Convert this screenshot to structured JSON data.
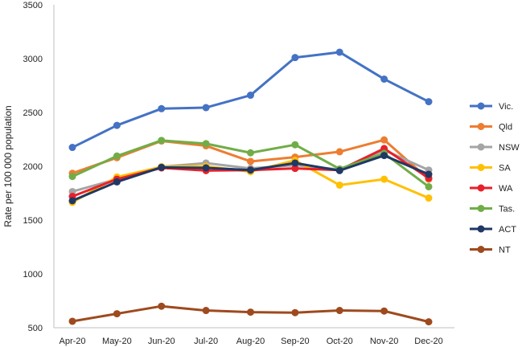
{
  "chart_data": {
    "type": "line",
    "title": "",
    "xlabel": "",
    "ylabel": "Rate per 100 000 population",
    "ylim": [
      500,
      3500
    ],
    "yticks": [
      500,
      1000,
      1500,
      2000,
      2500,
      3000,
      3500
    ],
    "grid": false,
    "legend_position": "right",
    "categories": [
      "Apr-20",
      "May-20",
      "Jun-20",
      "Jul-20",
      "Aug-20",
      "Sep-20",
      "Oct-20",
      "Nov-20",
      "Dec-20"
    ],
    "series": [
      {
        "name": "Vic.",
        "color": "#4472C4",
        "values": [
          2175,
          2380,
          2535,
          2545,
          2660,
          3010,
          3060,
          2810,
          2600
        ]
      },
      {
        "name": "Qld",
        "color": "#ED7D31",
        "values": [
          1935,
          2080,
          2235,
          2190,
          2045,
          2085,
          2135,
          2245,
          1880
        ]
      },
      {
        "name": "NSW",
        "color": "#A5A5A5",
        "values": [
          1765,
          1880,
          1995,
          2030,
          1980,
          2010,
          1970,
          2150,
          1965
        ]
      },
      {
        "name": "SA",
        "color": "#FFC000",
        "values": [
          1665,
          1900,
          1995,
          2000,
          1950,
          2055,
          1825,
          1880,
          1705
        ]
      },
      {
        "name": "WA",
        "color": "#E8202A",
        "values": [
          1720,
          1880,
          1985,
          1960,
          1965,
          1980,
          1965,
          2165,
          1890
        ]
      },
      {
        "name": "Tas.",
        "color": "#70AD47",
        "values": [
          1905,
          2095,
          2240,
          2210,
          2125,
          2200,
          1975,
          2120,
          1810
        ]
      },
      {
        "name": "ACT",
        "color": "#203864",
        "values": [
          1680,
          1855,
          1990,
          1985,
          1965,
          2030,
          1960,
          2100,
          1925
        ]
      },
      {
        "name": "NT",
        "color": "#9E4A1E",
        "values": [
          560,
          630,
          700,
          660,
          645,
          640,
          660,
          655,
          555
        ]
      }
    ]
  }
}
